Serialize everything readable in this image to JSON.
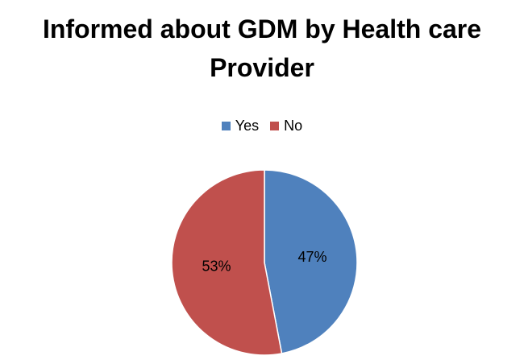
{
  "chart_data": {
    "type": "pie",
    "title": "Informed  about GDM by Health care\nProvider",
    "legend_position": "top",
    "slices": [
      {
        "name": "Yes",
        "value": 47,
        "label": "47%",
        "color": "#4f81bd"
      },
      {
        "name": "No",
        "value": 53,
        "label": "53%",
        "color": "#c0504d"
      }
    ]
  }
}
